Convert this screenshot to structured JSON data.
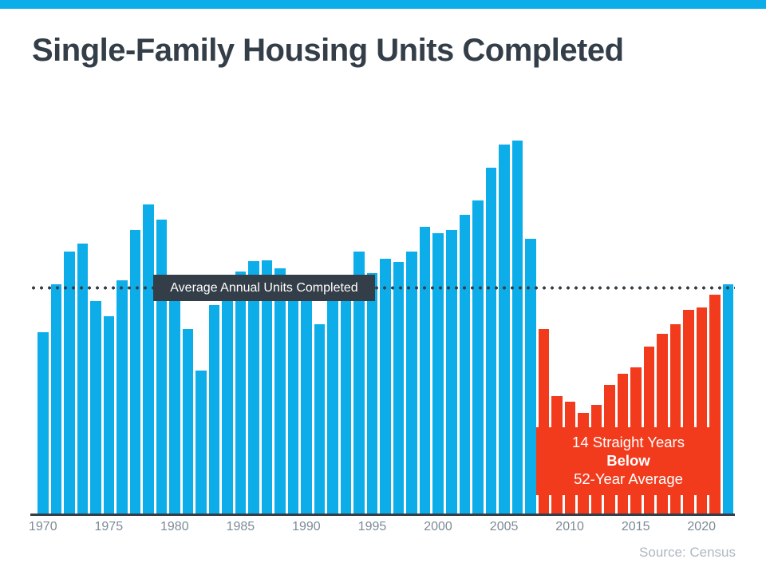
{
  "page": {
    "title": "Single-Family Housing Units Completed",
    "source_label": "Source: Census",
    "colors": {
      "blue": "#0cade9",
      "red": "#f23b1c",
      "dark": "#333e48",
      "tick_gray": "#7c8a96",
      "source_gray": "#aeb8c2"
    }
  },
  "chart_data": {
    "type": "bar",
    "title": "Single-Family Housing Units Completed",
    "values_unit": "thousands of single-family housing units completed per year (estimated from bar heights)",
    "years": [
      1970,
      1971,
      1972,
      1973,
      1974,
      1975,
      1976,
      1977,
      1978,
      1979,
      1980,
      1981,
      1982,
      1983,
      1984,
      1985,
      1986,
      1987,
      1988,
      1989,
      1990,
      1991,
      1992,
      1993,
      1994,
      1995,
      1996,
      1997,
      1998,
      1999,
      2000,
      2001,
      2002,
      2003,
      2004,
      2005,
      2006,
      2007,
      2008,
      2009,
      2010,
      2011,
      2012,
      2013,
      2014,
      2015,
      2016,
      2017,
      2018,
      2019,
      2020,
      2021,
      2022
    ],
    "values": [
      802,
      1014,
      1160,
      1197,
      940,
      875,
      1034,
      1258,
      1369,
      1301,
      957,
      819,
      632,
      924,
      1025,
      1072,
      1120,
      1123,
      1085,
      1026,
      966,
      838,
      964,
      1039,
      1160,
      1066,
      1129,
      1116,
      1160,
      1270,
      1242,
      1256,
      1325,
      1386,
      1531,
      1636,
      1654,
      1218,
      819,
      520,
      496,
      447,
      483,
      569,
      620,
      648,
      738,
      795,
      840,
      903,
      912,
      970,
      1015
    ],
    "ylim": [
      0,
      1840
    ],
    "grid": false,
    "legend": false,
    "average_line": {
      "label": "Average Annual Units Completed",
      "value_thousands": 1000,
      "style": "dotted"
    },
    "below_average_span": {
      "start_year": 2008,
      "end_year": 2021,
      "annotation": [
        "14 Straight Years",
        "Below",
        "52-Year Average"
      ]
    },
    "x_tick_labels": [
      "1970",
      "1975",
      "1980",
      "1985",
      "1990",
      "1995",
      "2000",
      "2005",
      "2010",
      "2015",
      "2020"
    ]
  }
}
